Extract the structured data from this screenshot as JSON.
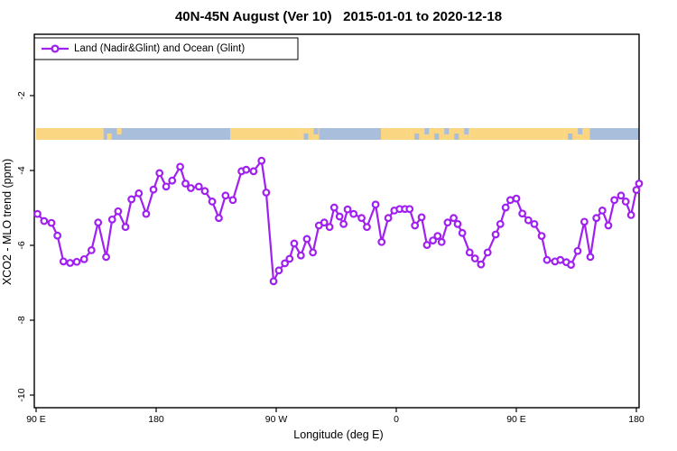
{
  "title": "40N-45N August (Ver 10)   2015-01-01 to 2020-12-18",
  "legend": {
    "label": "Land (Nadir&Glint) and Ocean (Glint)"
  },
  "axes": {
    "x_label": "Longitude (deg E)",
    "y_label": "XCO2 - MLO trend (ppm)",
    "x_ticks": [
      {
        "deg": 90,
        "label": "90 E"
      },
      {
        "deg": 180,
        "label": "180"
      },
      {
        "deg": 270,
        "label": "90 W"
      },
      {
        "deg": 360,
        "label": "0"
      },
      {
        "deg": 450,
        "label": "90 E"
      },
      {
        "deg": 540,
        "label": "180"
      }
    ],
    "y_ticks": [
      {
        "value": -2,
        "label": "-2"
      },
      {
        "value": -4,
        "label": "-4"
      },
      {
        "value": -6,
        "label": "-6"
      },
      {
        "value": -8,
        "label": "-8"
      },
      {
        "value": -10,
        "label": "-10"
      }
    ]
  },
  "colors": {
    "series": "#A020F0",
    "marker_fill": "#ffffff",
    "land_band": "#FAD683",
    "ocean_band": "#A9BEDB",
    "axis": "#000000"
  },
  "chart_data": {
    "type": "line",
    "title": "40N-45N August (Ver 10)   2015-01-01 to 2020-12-18",
    "xlabel": "Longitude (deg E)",
    "ylabel": "XCO2 - MLO trend (ppm)",
    "x_axis_note": "x is longitude in deg E measured continuously from 90E (90 to 540, wrapping past 360); ticks every 90 deg",
    "xlim": [
      90,
      542
    ],
    "ylim": [
      -10.35,
      -0.35
    ],
    "grid": false,
    "legend_position": "top-left",
    "marker": "open-circle",
    "series": [
      {
        "name": "Land (Nadir&Glint) and Ocean (Glint)",
        "points": [
          [
            91,
            -5.16
          ],
          [
            96,
            -5.35
          ],
          [
            101.5,
            -5.4
          ],
          [
            106,
            -5.74
          ],
          [
            110.5,
            -6.43
          ],
          [
            115.5,
            -6.47
          ],
          [
            120.5,
            -6.44
          ],
          [
            126,
            -6.37
          ],
          [
            131.5,
            -6.13
          ],
          [
            136.5,
            -5.39
          ],
          [
            142.5,
            -6.31
          ],
          [
            147,
            -5.31
          ],
          [
            151.5,
            -5.09
          ],
          [
            157,
            -5.51
          ],
          [
            161.5,
            -4.77
          ],
          [
            167,
            -4.61
          ],
          [
            172.5,
            -5.16
          ],
          [
            178,
            -4.51
          ],
          [
            182.5,
            -4.07
          ],
          [
            187.5,
            -4.43
          ],
          [
            192,
            -4.27
          ],
          [
            198,
            -3.9
          ],
          [
            202,
            -4.35
          ],
          [
            206,
            -4.47
          ],
          [
            212,
            -4.43
          ],
          [
            216.5,
            -4.55
          ],
          [
            222,
            -4.83
          ],
          [
            227,
            -5.27
          ],
          [
            232,
            -4.67
          ],
          [
            237.5,
            -4.79
          ],
          [
            244,
            -4.02
          ],
          [
            247.5,
            -3.98
          ],
          [
            253,
            -4.02
          ],
          [
            259,
            -3.74
          ],
          [
            262.5,
            -4.59
          ],
          [
            268,
            -6.96
          ],
          [
            272,
            -6.67
          ],
          [
            276.5,
            -6.48
          ],
          [
            280,
            -6.36
          ],
          [
            283.5,
            -5.95
          ],
          [
            288.5,
            -6.27
          ],
          [
            293,
            -5.83
          ],
          [
            297.5,
            -6.19
          ],
          [
            302,
            -5.47
          ],
          [
            306,
            -5.39
          ],
          [
            310,
            -5.51
          ],
          [
            313.5,
            -4.99
          ],
          [
            317.5,
            -5.23
          ],
          [
            320.5,
            -5.43
          ],
          [
            323.5,
            -5.04
          ],
          [
            328,
            -5.16
          ],
          [
            334,
            -5.27
          ],
          [
            338,
            -5.51
          ],
          [
            344.5,
            -4.91
          ],
          [
            349,
            -5.91
          ],
          [
            354,
            -5.27
          ],
          [
            358.5,
            -5.07
          ],
          [
            362.5,
            -5.03
          ],
          [
            366.5,
            -5.03
          ],
          [
            370,
            -5.03
          ],
          [
            374,
            -5.47
          ],
          [
            379,
            -5.25
          ],
          [
            383,
            -5.99
          ],
          [
            387.5,
            -5.87
          ],
          [
            391,
            -5.75
          ],
          [
            394,
            -5.91
          ],
          [
            398.5,
            -5.39
          ],
          [
            403,
            -5.27
          ],
          [
            406,
            -5.43
          ],
          [
            409.5,
            -5.67
          ],
          [
            415,
            -6.19
          ],
          [
            419,
            -6.35
          ],
          [
            423.5,
            -6.51
          ],
          [
            428.5,
            -6.19
          ],
          [
            434.5,
            -5.71
          ],
          [
            438,
            -5.43
          ],
          [
            442,
            -4.99
          ],
          [
            445.5,
            -4.79
          ],
          [
            450,
            -4.75
          ],
          [
            454.5,
            -5.15
          ],
          [
            459,
            -5.33
          ],
          [
            463.5,
            -5.43
          ],
          [
            469,
            -5.75
          ],
          [
            473,
            -6.39
          ],
          [
            479,
            -6.43
          ],
          [
            483,
            -6.39
          ],
          [
            487.5,
            -6.45
          ],
          [
            491,
            -6.52
          ],
          [
            496,
            -6.15
          ],
          [
            501,
            -5.37
          ],
          [
            505.5,
            -6.31
          ],
          [
            510,
            -5.27
          ],
          [
            514.5,
            -5.07
          ],
          [
            519,
            -5.47
          ],
          [
            523.5,
            -4.79
          ],
          [
            528.5,
            -4.67
          ],
          [
            532,
            -4.83
          ],
          [
            536,
            -5.19
          ],
          [
            540,
            -4.52
          ],
          [
            542,
            -4.35
          ]
        ]
      }
    ],
    "surface_band": {
      "description": "land(orange)/ocean(blue) strip along latitude 40N-45N",
      "y_value": -3.0,
      "segments": [
        {
          "from": 90,
          "to": 140.5,
          "base": "land"
        },
        {
          "from": 140.5,
          "to": 158,
          "base": "ocean",
          "specks": "land"
        },
        {
          "from": 158,
          "to": 235.5,
          "base": "ocean"
        },
        {
          "from": 235.5,
          "to": 288,
          "base": "land"
        },
        {
          "from": 288,
          "to": 302,
          "base": "land",
          "specks": "ocean"
        },
        {
          "from": 302,
          "to": 348.5,
          "base": "ocean"
        },
        {
          "from": 348.5,
          "to": 371,
          "base": "land"
        },
        {
          "from": 371,
          "to": 415,
          "base": "land",
          "specks": "ocean"
        },
        {
          "from": 415,
          "to": 486,
          "base": "land"
        },
        {
          "from": 486,
          "to": 505,
          "base": "land",
          "specks": "ocean"
        },
        {
          "from": 505,
          "to": 542,
          "base": "ocean"
        }
      ]
    }
  }
}
